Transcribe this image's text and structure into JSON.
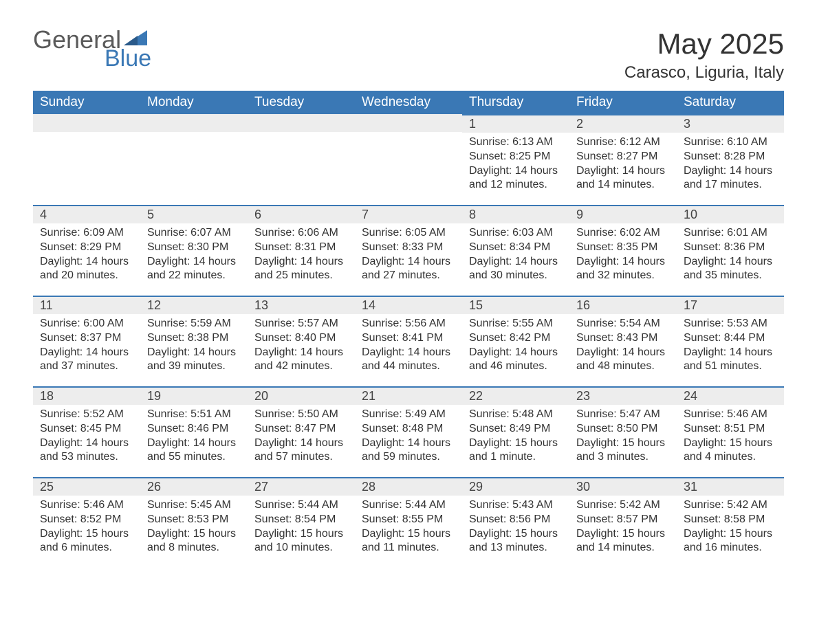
{
  "logo": {
    "general": "General",
    "blue": "Blue"
  },
  "title": "May 2025",
  "location": "Carasco, Liguria, Italy",
  "colors": {
    "header_bg": "#3a78b5",
    "daynum_bg": "#ededed",
    "daynum_border": "#3a78b5",
    "page_bg": "#ffffff",
    "text": "#333333",
    "logo_gray": "#5a5a5a",
    "logo_blue": "#3a78b5"
  },
  "weekdays": [
    "Sunday",
    "Monday",
    "Tuesday",
    "Wednesday",
    "Thursday",
    "Friday",
    "Saturday"
  ],
  "firstDayOffset": 4,
  "days": [
    {
      "n": 1,
      "sunrise": "6:13 AM",
      "sunset": "8:25 PM",
      "daylight": "14 hours and 12 minutes."
    },
    {
      "n": 2,
      "sunrise": "6:12 AM",
      "sunset": "8:27 PM",
      "daylight": "14 hours and 14 minutes."
    },
    {
      "n": 3,
      "sunrise": "6:10 AM",
      "sunset": "8:28 PM",
      "daylight": "14 hours and 17 minutes."
    },
    {
      "n": 4,
      "sunrise": "6:09 AM",
      "sunset": "8:29 PM",
      "daylight": "14 hours and 20 minutes."
    },
    {
      "n": 5,
      "sunrise": "6:07 AM",
      "sunset": "8:30 PM",
      "daylight": "14 hours and 22 minutes."
    },
    {
      "n": 6,
      "sunrise": "6:06 AM",
      "sunset": "8:31 PM",
      "daylight": "14 hours and 25 minutes."
    },
    {
      "n": 7,
      "sunrise": "6:05 AM",
      "sunset": "8:33 PM",
      "daylight": "14 hours and 27 minutes."
    },
    {
      "n": 8,
      "sunrise": "6:03 AM",
      "sunset": "8:34 PM",
      "daylight": "14 hours and 30 minutes."
    },
    {
      "n": 9,
      "sunrise": "6:02 AM",
      "sunset": "8:35 PM",
      "daylight": "14 hours and 32 minutes."
    },
    {
      "n": 10,
      "sunrise": "6:01 AM",
      "sunset": "8:36 PM",
      "daylight": "14 hours and 35 minutes."
    },
    {
      "n": 11,
      "sunrise": "6:00 AM",
      "sunset": "8:37 PM",
      "daylight": "14 hours and 37 minutes."
    },
    {
      "n": 12,
      "sunrise": "5:59 AM",
      "sunset": "8:38 PM",
      "daylight": "14 hours and 39 minutes."
    },
    {
      "n": 13,
      "sunrise": "5:57 AM",
      "sunset": "8:40 PM",
      "daylight": "14 hours and 42 minutes."
    },
    {
      "n": 14,
      "sunrise": "5:56 AM",
      "sunset": "8:41 PM",
      "daylight": "14 hours and 44 minutes."
    },
    {
      "n": 15,
      "sunrise": "5:55 AM",
      "sunset": "8:42 PM",
      "daylight": "14 hours and 46 minutes."
    },
    {
      "n": 16,
      "sunrise": "5:54 AM",
      "sunset": "8:43 PM",
      "daylight": "14 hours and 48 minutes."
    },
    {
      "n": 17,
      "sunrise": "5:53 AM",
      "sunset": "8:44 PM",
      "daylight": "14 hours and 51 minutes."
    },
    {
      "n": 18,
      "sunrise": "5:52 AM",
      "sunset": "8:45 PM",
      "daylight": "14 hours and 53 minutes."
    },
    {
      "n": 19,
      "sunrise": "5:51 AM",
      "sunset": "8:46 PM",
      "daylight": "14 hours and 55 minutes."
    },
    {
      "n": 20,
      "sunrise": "5:50 AM",
      "sunset": "8:47 PM",
      "daylight": "14 hours and 57 minutes."
    },
    {
      "n": 21,
      "sunrise": "5:49 AM",
      "sunset": "8:48 PM",
      "daylight": "14 hours and 59 minutes."
    },
    {
      "n": 22,
      "sunrise": "5:48 AM",
      "sunset": "8:49 PM",
      "daylight": "15 hours and 1 minute."
    },
    {
      "n": 23,
      "sunrise": "5:47 AM",
      "sunset": "8:50 PM",
      "daylight": "15 hours and 3 minutes."
    },
    {
      "n": 24,
      "sunrise": "5:46 AM",
      "sunset": "8:51 PM",
      "daylight": "15 hours and 4 minutes."
    },
    {
      "n": 25,
      "sunrise": "5:46 AM",
      "sunset": "8:52 PM",
      "daylight": "15 hours and 6 minutes."
    },
    {
      "n": 26,
      "sunrise": "5:45 AM",
      "sunset": "8:53 PM",
      "daylight": "15 hours and 8 minutes."
    },
    {
      "n": 27,
      "sunrise": "5:44 AM",
      "sunset": "8:54 PM",
      "daylight": "15 hours and 10 minutes."
    },
    {
      "n": 28,
      "sunrise": "5:44 AM",
      "sunset": "8:55 PM",
      "daylight": "15 hours and 11 minutes."
    },
    {
      "n": 29,
      "sunrise": "5:43 AM",
      "sunset": "8:56 PM",
      "daylight": "15 hours and 13 minutes."
    },
    {
      "n": 30,
      "sunrise": "5:42 AM",
      "sunset": "8:57 PM",
      "daylight": "15 hours and 14 minutes."
    },
    {
      "n": 31,
      "sunrise": "5:42 AM",
      "sunset": "8:58 PM",
      "daylight": "15 hours and 16 minutes."
    }
  ],
  "labels": {
    "sunrise": "Sunrise: ",
    "sunset": "Sunset: ",
    "daylight": "Daylight: "
  }
}
